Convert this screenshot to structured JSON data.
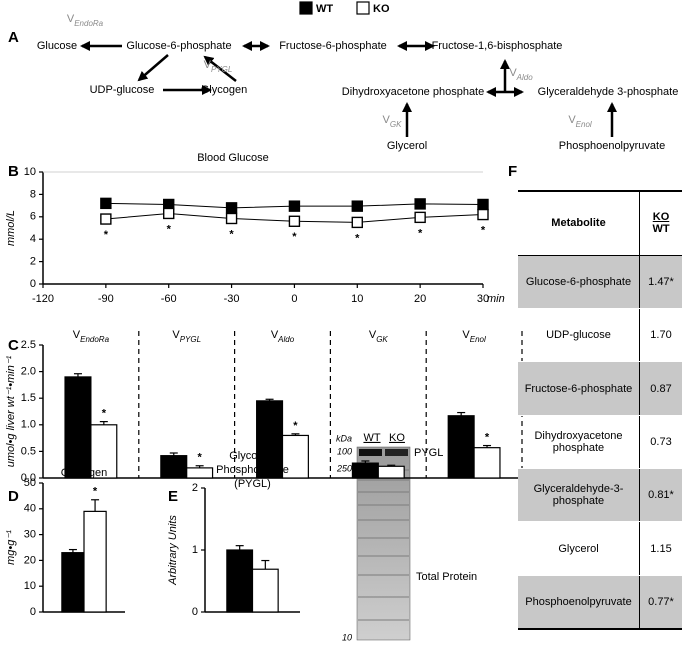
{
  "panel_labels": [
    "A",
    "B",
    "C",
    "D",
    "E",
    "F"
  ],
  "diagram": {
    "nodes": [
      "Glucose",
      "Glucose-6-phosphate",
      "Fructose-6-phosphate",
      "Fructose-1,6-bisphosphate",
      "UDP-glucose",
      "Glycogen",
      "Dihydroxyacetone phosphate",
      "Glyceraldehyde 3-phosphate",
      "Glycerol",
      "Phosphoenolpyruvate"
    ]
  },
  "chart_data": [
    {
      "type": "line",
      "title": "Blood Glucose",
      "ylabel": "mmol/L",
      "x_unit": "min",
      "categories": [
        "-120",
        "-90",
        "-60",
        "-30",
        "0",
        "10",
        "20",
        "30"
      ],
      "series": [
        {
          "name": "WT",
          "color": "#000000",
          "values": [
            null,
            7.2,
            7.1,
            6.8,
            6.95,
            6.95,
            7.15,
            7.1
          ]
        },
        {
          "name": "KO",
          "color": "#ffffff",
          "values": [
            null,
            5.8,
            6.3,
            5.85,
            5.6,
            5.5,
            5.95,
            6.2
          ],
          "annotations": [
            null,
            "*",
            "*",
            "*",
            "*",
            "*",
            "*",
            "*"
          ]
        }
      ],
      "ylim": [
        0,
        10
      ],
      "yticks": [
        0,
        2,
        4,
        6,
        8,
        10
      ]
    },
    {
      "type": "bar",
      "ylabel": "umol•g liver wt⁻¹•min⁻¹",
      "category_prefix": "V",
      "categories": [
        "EndoRa",
        "PYGL",
        "Aldo",
        "GK",
        "Enol"
      ],
      "series": [
        {
          "color": "#000000",
          "values": [
            1.9,
            0.42,
            1.45,
            0.28,
            1.17
          ],
          "errors": [
            0.06,
            0.05,
            0.03,
            0.04,
            0.06
          ]
        },
        {
          "color": "#ffffff",
          "values": [
            1.0,
            0.19,
            0.8,
            0.22,
            0.57
          ],
          "errors": [
            0.06,
            0.04,
            0.03,
            0.02,
            0.04
          ],
          "annotations": [
            "*",
            "*",
            "*",
            null,
            "*"
          ]
        }
      ],
      "ylim": [
        0,
        2.5
      ],
      "yticks": [
        {
          "value": 0,
          "label": "0.0"
        },
        0.5,
        {
          "value": 1,
          "label": "1.0"
        },
        1.5,
        {
          "value": 2,
          "label": "2.0"
        },
        2.5
      ]
    },
    {
      "type": "bar",
      "title": "Glycogen",
      "ylabel": "mg•g⁻¹",
      "series": [
        {
          "color": "#000000",
          "values": [
            23
          ],
          "errors": [
            1.2
          ]
        },
        {
          "color": "#ffffff",
          "values": [
            39
          ],
          "errors": [
            4.5
          ],
          "annotations": [
            "*"
          ]
        }
      ],
      "ylim": [
        0,
        50
      ],
      "yticks": [
        0,
        10,
        20,
        30,
        40,
        50
      ]
    },
    {
      "type": "bar",
      "title": [
        "Glycogen",
        "Phosphorylase",
        "(PYGL)"
      ],
      "ylabel": "Arbitrary Units",
      "series": [
        {
          "color": "#000000",
          "values": [
            1.0
          ],
          "errors": [
            0.07
          ]
        },
        {
          "color": "#ffffff",
          "values": [
            0.69
          ],
          "errors": [
            0.14
          ]
        }
      ],
      "ylim": [
        0,
        2
      ],
      "yticks": [
        0,
        1,
        2
      ]
    }
  ],
  "blot": {
    "unit": "kDa",
    "markers": [
      "100",
      "250",
      "10"
    ],
    "lanes": [
      "WT",
      "KO"
    ],
    "bands": [
      "PYGL",
      "Total Protein"
    ]
  },
  "table": {
    "header": {
      "metabolite": "Metabolite",
      "top": "KO",
      "bottom": "WT"
    },
    "rows": [
      [
        "Glucose-6-phosphate",
        "1.47*"
      ],
      [
        "UDP-glucose",
        "1.70"
      ],
      [
        "Fructose-6-phosphate",
        "0.87"
      ],
      [
        "Dihydroxyacetone phosphate",
        "0.73"
      ],
      [
        "Glyceraldehyde-3-phosphate",
        "0.81*"
      ],
      [
        "Glycerol",
        "1.15"
      ],
      [
        "Phosphoenolpyruvate",
        "0.77*"
      ]
    ]
  }
}
